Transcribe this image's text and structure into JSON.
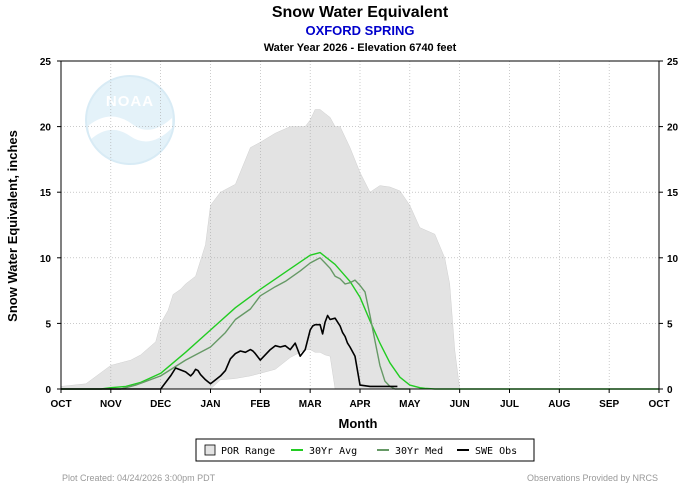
{
  "chart_data": {
    "type": "line",
    "title": "Snow Water Equivalent",
    "subtitle": "OXFORD SPRING",
    "subsubtitle": "Water Year 2026 -  Elevation 6740 feet",
    "xlabel": "Month",
    "ylabel": "Snow Water Equivalent, inches",
    "ylim": [
      0,
      25
    ],
    "xlim": [
      0,
      12
    ],
    "yticks": [
      "0",
      "5",
      "10",
      "15",
      "20",
      "25"
    ],
    "xticks": [
      "OCT",
      "NOV",
      "DEC",
      "JAN",
      "FEB",
      "MAR",
      "APR",
      "MAY",
      "JUN",
      "JUL",
      "AUG",
      "SEP",
      "OCT"
    ],
    "grid": true,
    "legend_position": "bottom",
    "logo_text": "NOAA",
    "series": [
      {
        "name": "POR Range",
        "kind": "band",
        "color": "#e3e3e3",
        "x": [
          0,
          0.5,
          1.0,
          1.4,
          1.6,
          1.9,
          2.0,
          2.15,
          2.25,
          2.4,
          2.5,
          2.7,
          2.9,
          3.0,
          3.2,
          3.5,
          3.8,
          4.0,
          4.3,
          4.6,
          4.9,
          5.0,
          5.1,
          5.2,
          5.3,
          5.4,
          5.5,
          5.6,
          5.8,
          6.0,
          6.2,
          6.4,
          6.6,
          6.8,
          7.0,
          7.2,
          7.5,
          7.7,
          7.8,
          7.9,
          8.0,
          12.0
        ],
        "upper": [
          0.2,
          0.4,
          1.8,
          2.2,
          2.6,
          3.6,
          5.0,
          6.0,
          7.2,
          7.6,
          8.0,
          8.6,
          11.0,
          14.0,
          15.0,
          15.6,
          18.4,
          18.8,
          19.5,
          20.0,
          20.0,
          20.5,
          21.3,
          21.3,
          21.0,
          20.7,
          20.0,
          20.0,
          18.4,
          16.5,
          15.0,
          15.5,
          15.4,
          15.1,
          14.0,
          12.3,
          11.8,
          10.0,
          8.0,
          3.0,
          0,
          0
        ],
        "lower": [
          0,
          0,
          0,
          0,
          0,
          0,
          0,
          0,
          0,
          0,
          0,
          0,
          0,
          0,
          0.7,
          0.8,
          1.0,
          1.2,
          1.5,
          2.4,
          3.0,
          3.0,
          2.8,
          2.8,
          2.6,
          2.5,
          0,
          0,
          0,
          0,
          0,
          0,
          0,
          0,
          0,
          0,
          0,
          0,
          0,
          0,
          0,
          0
        ]
      },
      {
        "name": "30Yr Avg",
        "kind": "line",
        "color": "#22cc22",
        "x": [
          0,
          0.8,
          1.0,
          1.3,
          1.6,
          2.0,
          2.5,
          3.0,
          3.5,
          4.0,
          4.5,
          5.0,
          5.2,
          5.5,
          5.8,
          6.0,
          6.2,
          6.4,
          6.6,
          6.8,
          7.0,
          7.2,
          7.3,
          7.5,
          12.0
        ],
        "y": [
          0,
          0,
          0.1,
          0.2,
          0.5,
          1.2,
          2.8,
          4.5,
          6.2,
          7.6,
          8.9,
          10.2,
          10.4,
          9.5,
          8.2,
          7.0,
          5.2,
          3.5,
          2.0,
          0.9,
          0.3,
          0.1,
          0.05,
          0,
          0
        ]
      },
      {
        "name": "30Yr Med",
        "kind": "line",
        "color": "#669966",
        "x": [
          0,
          1.2,
          1.5,
          2.0,
          2.5,
          3.0,
          3.3,
          3.5,
          3.8,
          4.0,
          4.3,
          4.5,
          4.8,
          5.0,
          5.1,
          5.2,
          5.3,
          5.4,
          5.5,
          5.6,
          5.7,
          5.8,
          5.9,
          6.0,
          6.1,
          6.2,
          6.3,
          6.4,
          6.5,
          6.6,
          6.7,
          6.8,
          7.0
        ],
        "y": [
          0,
          0,
          0.3,
          1.0,
          2.2,
          3.2,
          4.3,
          5.3,
          6.1,
          7.1,
          7.8,
          8.2,
          9.0,
          9.6,
          9.8,
          10.0,
          9.6,
          9.2,
          8.6,
          8.4,
          8.0,
          8.1,
          8.3,
          7.9,
          7.4,
          5.6,
          3.7,
          1.8,
          0.6,
          0.2,
          0,
          0,
          0
        ]
      },
      {
        "name": "SWE Obs",
        "kind": "line",
        "color": "#000000",
        "x": [
          0,
          2.0,
          2.1,
          2.2,
          2.3,
          2.5,
          2.6,
          2.65,
          2.7,
          2.75,
          2.8,
          2.9,
          3.0,
          3.2,
          3.3,
          3.4,
          3.5,
          3.6,
          3.7,
          3.8,
          3.85,
          3.9,
          4.0,
          4.2,
          4.3,
          4.4,
          4.5,
          4.6,
          4.7,
          4.8,
          4.9,
          5.0,
          5.05,
          5.1,
          5.2,
          5.25,
          5.3,
          5.35,
          5.4,
          5.5,
          5.6,
          5.65,
          5.7,
          5.75,
          5.8,
          5.9,
          6.0,
          6.2,
          6.5,
          6.75
        ],
        "y": [
          0,
          0,
          0.5,
          1.0,
          1.6,
          1.3,
          1.0,
          1.2,
          1.5,
          1.4,
          1.1,
          0.7,
          0.4,
          1.0,
          1.4,
          2.3,
          2.7,
          2.9,
          2.8,
          3.0,
          2.9,
          2.7,
          2.2,
          3.0,
          3.3,
          3.2,
          3.3,
          3.0,
          3.5,
          2.5,
          3.0,
          4.5,
          4.8,
          4.9,
          4.9,
          4.2,
          5.1,
          5.6,
          5.3,
          5.4,
          4.8,
          4.3,
          4.0,
          3.5,
          3.2,
          2.5,
          0.3,
          0.2,
          0.2,
          0.2
        ]
      }
    ]
  },
  "legend": [
    {
      "label": "POR Range",
      "kind": "box",
      "color": "#e3e3e3"
    },
    {
      "label": "30Yr Avg",
      "kind": "line",
      "color": "#22cc22"
    },
    {
      "label": "30Yr Med",
      "kind": "line",
      "color": "#669966"
    },
    {
      "label": "SWE Obs",
      "kind": "line",
      "color": "#000000"
    }
  ],
  "footer": {
    "left": "Plot Created: 04/24/2026 3:00pm PDT",
    "right": "Observations Provided by NRCS"
  }
}
